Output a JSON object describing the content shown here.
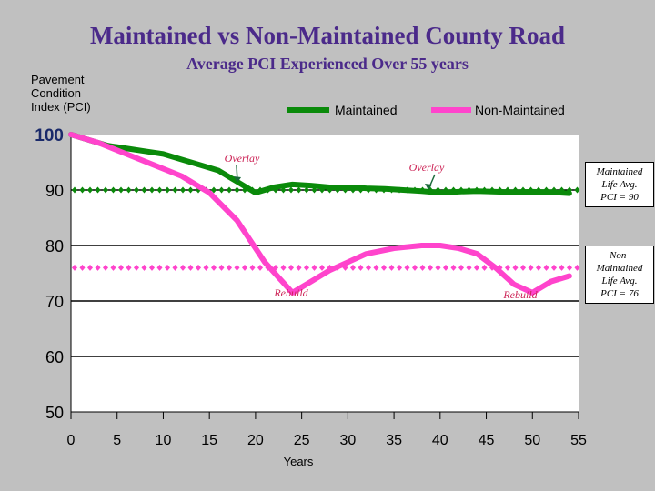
{
  "chart_data": {
    "type": "line",
    "title": "Maintained vs Non-Maintained County Road",
    "subtitle": "Average PCI Experienced Over 55 years",
    "ylabel": "Pavement Condition Index (PCI)",
    "xlabel": "Years",
    "xlim": [
      0,
      55
    ],
    "ylim": [
      50,
      100
    ],
    "x_ticks": [
      "0",
      "5",
      "10",
      "15",
      "20",
      "25",
      "30",
      "35",
      "40",
      "45",
      "50",
      "55"
    ],
    "y_ticks": [
      "100",
      "90",
      "80",
      "70",
      "60",
      "50"
    ],
    "grid": "horizontal",
    "legend_position": "top-right",
    "series": [
      {
        "name": "Maintained",
        "color": "#0a8a0a",
        "x": [
          0,
          2,
          4,
          6,
          8,
          10,
          12,
          14,
          16,
          18,
          20,
          22,
          24,
          26,
          28,
          30,
          32,
          34,
          36,
          38,
          40,
          42,
          44,
          46,
          48,
          50,
          52,
          54
        ],
        "values": [
          100,
          99,
          98,
          97.5,
          97,
          96.5,
          95.5,
          94.5,
          93.5,
          91.5,
          89.5,
          90.5,
          91,
          90.8,
          90.5,
          90.5,
          90.3,
          90.2,
          90,
          89.8,
          89.5,
          89.7,
          89.8,
          89.7,
          89.6,
          89.7,
          89.6,
          89.4
        ]
      },
      {
        "name": "Non-Maintained",
        "color": "#ff44cc",
        "x": [
          0,
          3,
          6,
          9,
          12,
          15,
          18,
          21,
          24,
          25,
          26,
          28,
          30,
          32,
          35,
          38,
          40,
          42,
          44,
          46,
          48,
          50,
          52,
          54
        ],
        "values": [
          100,
          98.5,
          96.5,
          94.5,
          92.5,
          89.5,
          84.5,
          77,
          71.5,
          72.5,
          73.5,
          75.5,
          77,
          78.5,
          79.5,
          80,
          80,
          79.5,
          78.5,
          76,
          73,
          71.5,
          73.5,
          74.5
        ]
      }
    ],
    "reference_lines": [
      {
        "name": "Maintained Life Avg.",
        "value": 90,
        "color": "#0a8a0a"
      },
      {
        "name": "Non-Maintained Life Avg.",
        "value": 76,
        "color": "#ff44cc"
      }
    ],
    "annotations": [
      {
        "text": "Overlay",
        "x": 18,
        "y": 89.5
      },
      {
        "text": "Overlay",
        "x": 39,
        "y": 89.5
      },
      {
        "text": "Rebuild",
        "x": 24,
        "y": 71.5
      },
      {
        "text": "Rebuild",
        "x": 48,
        "y": 71.5
      }
    ],
    "notes": [
      {
        "text": "Maintained Life Avg. PCI = 90"
      },
      {
        "text": "Non-Maintained Life Avg. PCI = 76"
      }
    ]
  },
  "labels": {
    "title": "Maintained vs Non-Maintained County Road",
    "subtitle": "Average PCI Experienced Over 55 years",
    "ylabel_lines": [
      "Pavement",
      "Condition",
      "Index (PCI)"
    ],
    "xlabel": "Years",
    "legend": [
      "Maintained",
      "Non-Maintained"
    ],
    "note_maintained": [
      "Maintained",
      "Life Avg.",
      "PCI = 90"
    ],
    "note_nonmaintained": [
      "Non-",
      "Maintained",
      "Life Avg.",
      "PCI = 76"
    ]
  }
}
